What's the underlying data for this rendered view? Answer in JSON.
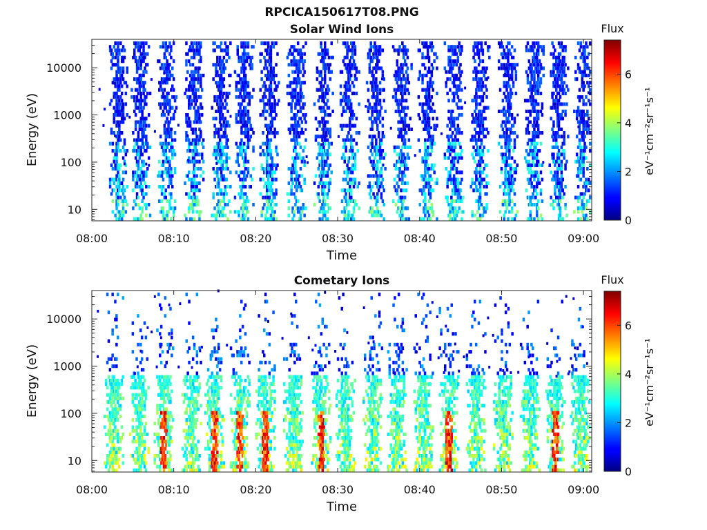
{
  "figure": {
    "title": "RPCICA150617T08.PNG"
  },
  "colorbar": {
    "title": "Flux",
    "label": "eV⁻¹cm⁻²sr⁻¹s⁻¹",
    "ticks": [
      "0",
      "2",
      "4",
      "6"
    ],
    "range": [
      0,
      7.4
    ],
    "colormap": "jet"
  },
  "chart_data": [
    {
      "type": "heatmap",
      "title": "Solar Wind Ions",
      "xlabel": "Time",
      "ylabel": "Energy (eV)",
      "x_tick_labels": [
        "08:00",
        "08:10",
        "08:20",
        "08:30",
        "08:40",
        "08:50",
        "09:00"
      ],
      "xlim_minutes": [
        0,
        61
      ],
      "y_tick_labels": [
        "10",
        "100",
        "1000",
        "10000"
      ],
      "y_scale": "log",
      "ylim": [
        5.7,
        40000
      ],
      "z_label": "Flux",
      "zlim": [
        0,
        7.4
      ],
      "burst_centers_minutes": [
        3.2,
        6.0,
        9.2,
        12.5,
        15.8,
        18.6,
        21.7,
        25.0,
        28.3,
        31.5,
        34.7,
        37.9,
        41.0,
        44.2,
        47.4,
        50.8,
        54.0,
        57.0,
        60.0
      ],
      "dominant_flux_range": [
        0.5,
        3.5
      ],
      "note_peak_energy_eV": [
        10,
        30000
      ]
    },
    {
      "type": "heatmap",
      "title": "Cometary Ions",
      "xlabel": "Time",
      "ylabel": "Energy (eV)",
      "x_tick_labels": [
        "08:00",
        "08:10",
        "08:20",
        "08:30",
        "08:40",
        "08:50",
        "09:00"
      ],
      "xlim_minutes": [
        0,
        61
      ],
      "y_tick_labels": [
        "10",
        "100",
        "1000",
        "10000"
      ],
      "y_scale": "log",
      "ylim": [
        5.7,
        40000
      ],
      "z_label": "Flux",
      "zlim": [
        0,
        7.4
      ],
      "burst_centers_minutes": [
        2.7,
        5.8,
        8.8,
        12.2,
        15.0,
        18.1,
        21.2,
        24.6,
        28.0,
        31.0,
        34.3,
        37.3,
        40.5,
        43.6,
        46.9,
        50.2,
        53.5,
        56.6,
        59.6
      ],
      "strong_burst_minutes": [
        8.8,
        15.0,
        18.1,
        21.2,
        28.0,
        43.6,
        56.6
      ],
      "dominant_flux_range": [
        2.5,
        6.8
      ],
      "note_peak_energy_eV": [
        8,
        400
      ]
    }
  ]
}
